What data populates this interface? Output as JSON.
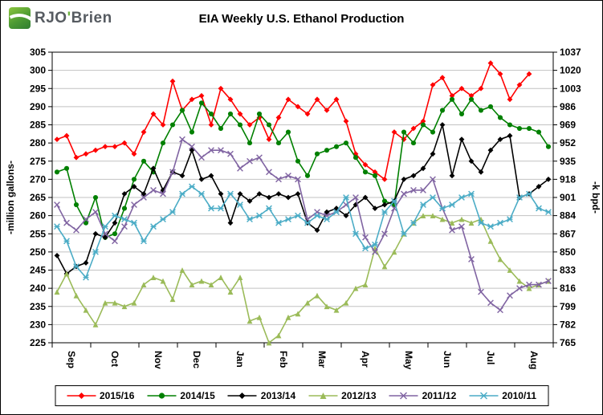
{
  "logo": {
    "rjo": "RJO",
    "apostrophe": "'",
    "brien": "Brien"
  },
  "title": "EIA Weekly U.S. Ethanol Production",
  "chart_data": {
    "type": "line",
    "title": "EIA Weekly U.S. Ethanol Production",
    "grid": true,
    "legend_position": "bottom",
    "left_axis": {
      "label": "-million gallons-",
      "min": 225,
      "max": 305,
      "step": 5,
      "ticks": [
        225,
        230,
        235,
        240,
        245,
        250,
        255,
        260,
        265,
        270,
        275,
        280,
        285,
        290,
        295,
        300,
        305
      ]
    },
    "right_axis": {
      "label": "-k bpd-",
      "ticks": [
        765,
        782,
        799,
        816,
        833,
        850,
        867,
        884,
        901,
        918,
        935,
        952,
        969,
        986,
        1003,
        1020,
        1037
      ]
    },
    "x_axis": {
      "months": [
        "Sep",
        "Oct",
        "Nov",
        "Dec",
        "Jan",
        "Feb",
        "Mar",
        "Apr",
        "May",
        "Jun",
        "Jul",
        "Aug"
      ],
      "weeks_per_month": [
        4,
        5,
        4,
        4,
        5,
        4,
        4,
        5,
        4,
        4,
        5,
        4
      ],
      "weeks": 52
    },
    "series": [
      {
        "name": "2015/16",
        "color": "#FF0000",
        "marker": "diamond",
        "values": [
          281,
          282,
          276,
          277,
          278,
          279,
          279,
          280,
          277,
          283,
          288,
          285,
          297,
          289,
          292,
          293,
          285,
          295,
          292,
          288,
          285,
          287,
          281,
          287,
          292,
          290,
          288,
          292,
          289,
          292,
          286,
          277,
          274,
          272,
          270,
          283,
          281,
          284,
          286,
          296,
          298,
          293,
          295,
          293,
          295,
          302,
          299,
          292,
          296,
          299,
          null,
          null
        ]
      },
      {
        "name": "2014/15",
        "color": "#008000",
        "marker": "circle",
        "values": [
          272,
          273,
          263,
          258,
          265,
          254,
          255,
          262,
          270,
          275,
          272,
          280,
          285,
          289,
          283,
          291,
          288,
          284,
          288,
          285,
          280,
          288,
          285,
          280,
          283,
          275,
          271,
          277,
          278,
          279,
          280,
          276,
          272,
          271,
          264,
          263,
          283,
          280,
          285,
          283,
          289,
          292,
          288,
          292,
          289,
          290,
          287,
          285,
          284,
          284,
          283,
          279
        ]
      },
      {
        "name": "2013/14",
        "color": "#000000",
        "marker": "diamond",
        "values": [
          249,
          244,
          246,
          247,
          255,
          254,
          258,
          266,
          268,
          266,
          273,
          267,
          272,
          271,
          278,
          270,
          271,
          266,
          258,
          266,
          264,
          266,
          265,
          266,
          265,
          266,
          258,
          256,
          261,
          262,
          260,
          263,
          265,
          262,
          263,
          264,
          270,
          271,
          273,
          277,
          285,
          271,
          281,
          275,
          272,
          278,
          281,
          282,
          265,
          266,
          268,
          270
        ]
      },
      {
        "name": "2012/13",
        "color": "#9BBB59",
        "marker": "triangle",
        "values": [
          239,
          244,
          238,
          234,
          230,
          236,
          236,
          235,
          236,
          241,
          243,
          242,
          237,
          245,
          241,
          242,
          241,
          243,
          239,
          243,
          231,
          232,
          225,
          227,
          232,
          233,
          236,
          238,
          235,
          234,
          236,
          240,
          241,
          251,
          246,
          250,
          255,
          258,
          260,
          260,
          259,
          258,
          259,
          258,
          259,
          253,
          248,
          245,
          242,
          240,
          241,
          242
        ]
      },
      {
        "name": "2011/12",
        "color": "#8064A2",
        "marker": "x",
        "values": [
          263,
          258,
          256,
          259,
          261,
          255,
          253,
          257,
          263,
          265,
          267,
          266,
          272,
          281,
          279,
          276,
          278,
          278,
          277,
          273,
          275,
          276,
          272,
          270,
          271,
          270,
          259,
          261,
          260,
          261,
          263,
          265,
          254,
          250,
          255,
          262,
          266,
          267,
          267,
          270,
          262,
          256,
          257,
          248,
          239,
          236,
          234,
          238,
          240,
          241,
          241,
          242
        ]
      },
      {
        "name": "2010/11",
        "color": "#4BACC6",
        "marker": "asterisk",
        "values": [
          257,
          253,
          246,
          243,
          250,
          257,
          260,
          259,
          258,
          253,
          257,
          259,
          261,
          266,
          268,
          266,
          262,
          262,
          266,
          263,
          259,
          260,
          262,
          258,
          259,
          260,
          258,
          260,
          259,
          261,
          265,
          255,
          251,
          252,
          261,
          264,
          255,
          258,
          263,
          265,
          262,
          263,
          265,
          266,
          258,
          257,
          258,
          259,
          265,
          266,
          262,
          261
        ]
      }
    ]
  }
}
